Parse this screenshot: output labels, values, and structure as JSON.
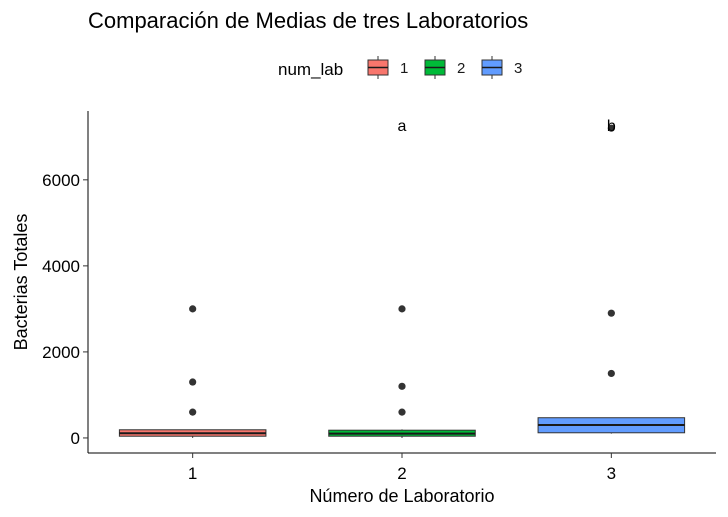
{
  "chart_data": {
    "type": "boxplot",
    "title": "Comparación de Medias de tres Laboratorios",
    "xlabel": "Número de Laboratorio",
    "ylabel": "Bacterias Totales",
    "categories": [
      "1",
      "2",
      "3"
    ],
    "ylim": [
      -350,
      7600
    ],
    "yticks": [
      0,
      2000,
      4000,
      6000
    ],
    "ytick_labels": [
      "0",
      "2000",
      "4000",
      "6000"
    ],
    "grid": false,
    "legend": {
      "title": "num_lab",
      "position": "top",
      "entries": [
        {
          "label": "1",
          "color": "#F8766D"
        },
        {
          "label": "2",
          "color": "#00BA38"
        },
        {
          "label": "3",
          "color": "#619CFF"
        }
      ]
    },
    "series": [
      {
        "category": "1",
        "color": "#F8766D",
        "q1": 40,
        "median": 110,
        "q3": 190,
        "whisker_low": 0,
        "whisker_high": 190,
        "outliers": [
          600,
          1300,
          3000
        ]
      },
      {
        "category": "2",
        "color": "#00BA38",
        "q1": 40,
        "median": 100,
        "q3": 180,
        "whisker_low": 0,
        "whisker_high": 200,
        "outliers": [
          600,
          1200,
          3000
        ]
      },
      {
        "category": "3",
        "color": "#619CFF",
        "q1": 120,
        "median": 300,
        "q3": 470,
        "whisker_low": 100,
        "whisker_high": 470,
        "outliers": [
          1500,
          2900,
          7200
        ]
      }
    ],
    "annotations": [
      {
        "category": "2",
        "y": 7280,
        "text": "a"
      },
      {
        "category": "3",
        "y": 7280,
        "text": "b"
      }
    ]
  }
}
